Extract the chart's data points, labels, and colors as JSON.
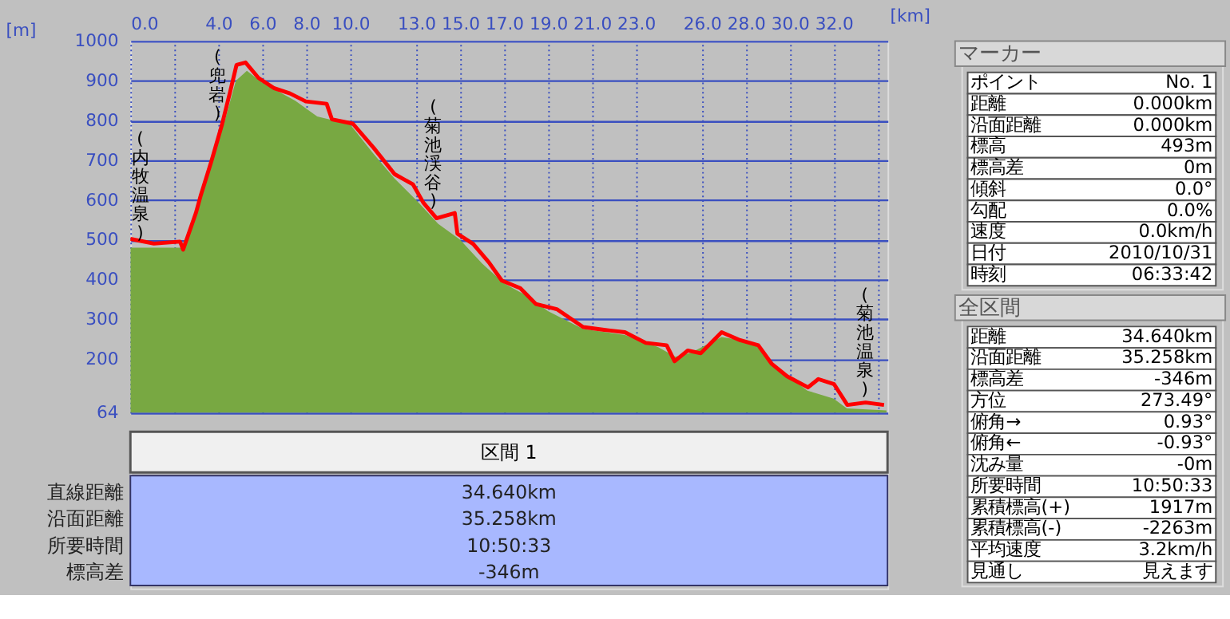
{
  "chart_data": [
    {
      "type": "area",
      "xlabel": "[km]",
      "ylabel": "[m]",
      "xlim": [
        0,
        34.45
      ],
      "ylim": [
        64,
        1000
      ],
      "xticks": [
        {
          "value": 0,
          "label": "0.0"
        },
        {
          "value": 2,
          "label": null
        },
        {
          "value": 4,
          "label": "4.0"
        },
        {
          "value": 6,
          "label": "6.0"
        },
        {
          "value": 8,
          "label": "8.0"
        },
        {
          "value": 10,
          "label": "10.0"
        },
        {
          "value": 13,
          "label": "13.0"
        },
        {
          "value": 15,
          "label": "15.0"
        },
        {
          "value": 17,
          "label": "17.0"
        },
        {
          "value": 19,
          "label": "19.0"
        },
        {
          "value": 21,
          "label": "21.0"
        },
        {
          "value": 23,
          "label": "23.0"
        },
        {
          "value": 26,
          "label": "26.0"
        },
        {
          "value": 28,
          "label": "28.0"
        },
        {
          "value": 30,
          "label": "30.0"
        },
        {
          "value": 32,
          "label": "32.0"
        },
        {
          "value": 34,
          "label": null
        }
      ],
      "yticks": [
        64,
        200,
        300,
        400,
        500,
        600,
        700,
        800,
        900,
        1000
      ],
      "grid": true,
      "series": [
        {
          "type": "area",
          "color": "#78a842",
          "x": [
            0,
            1,
            2.3,
            3,
            3.7,
            4.3,
            4.8,
            5.3,
            6,
            7.5,
            8.5,
            10,
            11,
            12,
            13,
            14,
            15,
            16,
            17,
            18,
            19,
            20.6,
            22.5,
            24,
            24.8,
            25.5,
            26.9,
            28,
            28.6,
            29.5,
            30.8,
            32,
            32.6,
            34.4
          ],
          "values": [
            480,
            480,
            480,
            560,
            700,
            800,
            900,
            925,
            895,
            850,
            810,
            790,
            720,
            655,
            600,
            540,
            500,
            440,
            390,
            360,
            320,
            275,
            260,
            230,
            205,
            215,
            255,
            245,
            228,
            175,
            120,
            100,
            75,
            70
          ]
        },
        {
          "type": "line",
          "color": "#ff0000",
          "x": [
            0,
            1.07,
            2.26,
            2.4,
            2.98,
            3.21,
            3.69,
            4.17,
            4.52,
            4.83,
            5.24,
            5.83,
            6.55,
            7.26,
            7.98,
            8.93,
            9.17,
            10.12,
            11.07,
            12.02,
            12.86,
            13.33,
            13.93,
            14.76,
            14.88,
            15.6,
            16.31,
            16.9,
            17.74,
            18.45,
            19.4,
            20.6,
            21.55,
            22.5,
            23.45,
            24.4,
            24.76,
            25.36,
            25.95,
            26.9,
            27.74,
            28.57,
            29.17,
            29.88,
            30.83,
            31.3,
            32.02,
            32.62,
            33.45,
            34.29
          ],
          "values": [
            502,
            490,
            495,
            475,
            567,
            613,
            698,
            790,
            868,
            940,
            946,
            907,
            881,
            868,
            848,
            842,
            803,
            792,
            731,
            665,
            639,
            593,
            554,
            567,
            515,
            489,
            443,
            397,
            378,
            338,
            325,
            280,
            273,
            267,
            240,
            234,
            194,
            221,
            214,
            267,
            247,
            234,
            188,
            156,
            128,
            149,
            136,
            84,
            90,
            84
          ]
        }
      ],
      "annotations": [
        "(内牧温泉)",
        "(兜岩)",
        "(菊池渓谷)",
        "(菊池温泉)"
      ]
    },
    {
      "type": "other",
      "title": "区間 1",
      "categories": [
        "直線距離",
        "沿面距離",
        "所要時間",
        "標高差"
      ],
      "value_labels": [
        "34.640km",
        "35.258km",
        "10:50:33",
        "-346m"
      ]
    },
    {
      "type": "other",
      "title": "マーカー",
      "categories": [
        "ポイント",
        "距離",
        "沿面距離",
        "標高",
        "標高差",
        "傾斜",
        "勾配",
        "速度",
        "日付",
        "時刻"
      ],
      "value_labels": [
        "No. 1",
        "0.000km",
        "0.000km",
        "493m",
        "0m",
        "0.0°",
        "0.0%",
        "0.0km/h",
        "2010/10/31",
        "06:33:42"
      ]
    },
    {
      "type": "other",
      "title": "全区間",
      "categories": [
        "距離",
        "沿面距離",
        "標高差",
        "方位",
        "俯角→",
        "俯角←",
        "沈み量",
        "所要時間",
        "累積標高(+)",
        "累積標高(-)",
        "平均速度",
        "見通し"
      ],
      "value_labels": [
        "34.640km",
        "35.258km",
        "-346m",
        "273.49°",
        "0.93°",
        "-0.93°",
        "-0m",
        "10:50:33",
        "1917m",
        "-2263m",
        "3.2km/h",
        "見えます"
      ]
    }
  ]
}
